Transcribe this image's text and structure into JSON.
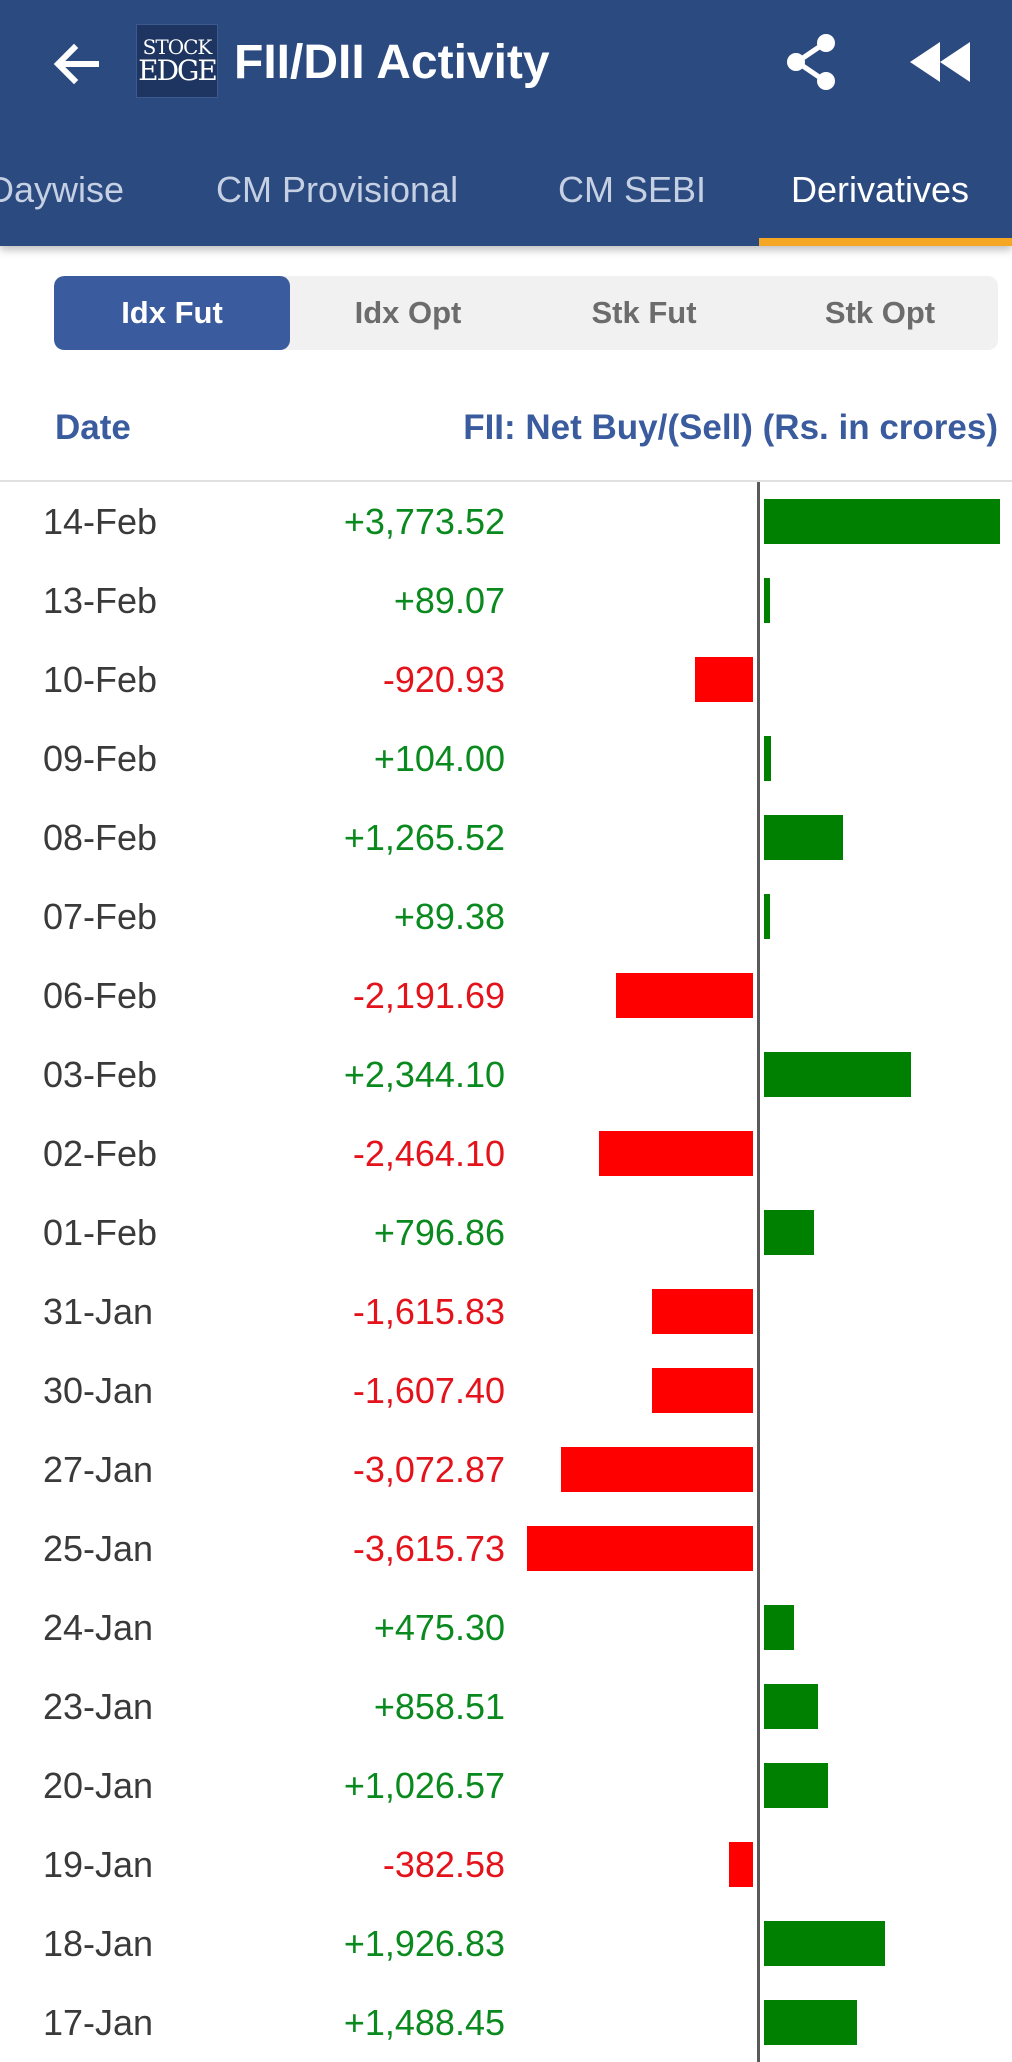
{
  "header": {
    "title": "FII/DII Activity",
    "logo_line1": "STOCK",
    "logo_line2": "EDGE",
    "back_icon": "arrow-left-icon",
    "share_icon": "share-icon",
    "rewind_icon": "rewind-icon"
  },
  "tabs": [
    {
      "label": "Daywise"
    },
    {
      "label": "CM Provisional"
    },
    {
      "label": "CM SEBI"
    },
    {
      "label": "Derivatives",
      "active": true
    }
  ],
  "segments": [
    {
      "label": "Idx Fut",
      "active": true
    },
    {
      "label": "Idx Opt"
    },
    {
      "label": "Stk Fut"
    },
    {
      "label": "Stk Opt"
    }
  ],
  "table": {
    "date_header": "Date",
    "value_header": "FII: Net Buy/(Sell) (Rs. in crores)",
    "rows": [
      {
        "date": "14-Feb",
        "value": "+3,773.52",
        "num": 3773.52
      },
      {
        "date": "13-Feb",
        "value": "+89.07",
        "num": 89.07
      },
      {
        "date": "10-Feb",
        "value": "-920.93",
        "num": -920.93
      },
      {
        "date": "09-Feb",
        "value": "+104.00",
        "num": 104.0
      },
      {
        "date": "08-Feb",
        "value": "+1,265.52",
        "num": 1265.52
      },
      {
        "date": "07-Feb",
        "value": "+89.38",
        "num": 89.38
      },
      {
        "date": "06-Feb",
        "value": "-2,191.69",
        "num": -2191.69
      },
      {
        "date": "03-Feb",
        "value": "+2,344.10",
        "num": 2344.1
      },
      {
        "date": "02-Feb",
        "value": "-2,464.10",
        "num": -2464.1
      },
      {
        "date": "01-Feb",
        "value": "+796.86",
        "num": 796.86
      },
      {
        "date": "31-Jan",
        "value": "-1,615.83",
        "num": -1615.83
      },
      {
        "date": "30-Jan",
        "value": "-1,607.40",
        "num": -1607.4
      },
      {
        "date": "27-Jan",
        "value": "-3,072.87",
        "num": -3072.87
      },
      {
        "date": "25-Jan",
        "value": "-3,615.73",
        "num": -3615.73
      },
      {
        "date": "24-Jan",
        "value": "+475.30",
        "num": 475.3
      },
      {
        "date": "23-Jan",
        "value": "+858.51",
        "num": 858.51
      },
      {
        "date": "20-Jan",
        "value": "+1,026.57",
        "num": 1026.57
      },
      {
        "date": "19-Jan",
        "value": "-382.58",
        "num": -382.58
      },
      {
        "date": "18-Jan",
        "value": "+1,926.83",
        "num": 1926.83
      },
      {
        "date": "17-Jan",
        "value": "+1,488.45",
        "num": 1488.45
      }
    ]
  },
  "colors": {
    "header_bg": "#2b4a80",
    "accent": "#3a5b9e",
    "tab_indicator": "#f5a623",
    "positive": "#0a8a1e",
    "negative": "#e4131b",
    "bar_positive": "#008000",
    "bar_negative": "#ff0000"
  }
}
